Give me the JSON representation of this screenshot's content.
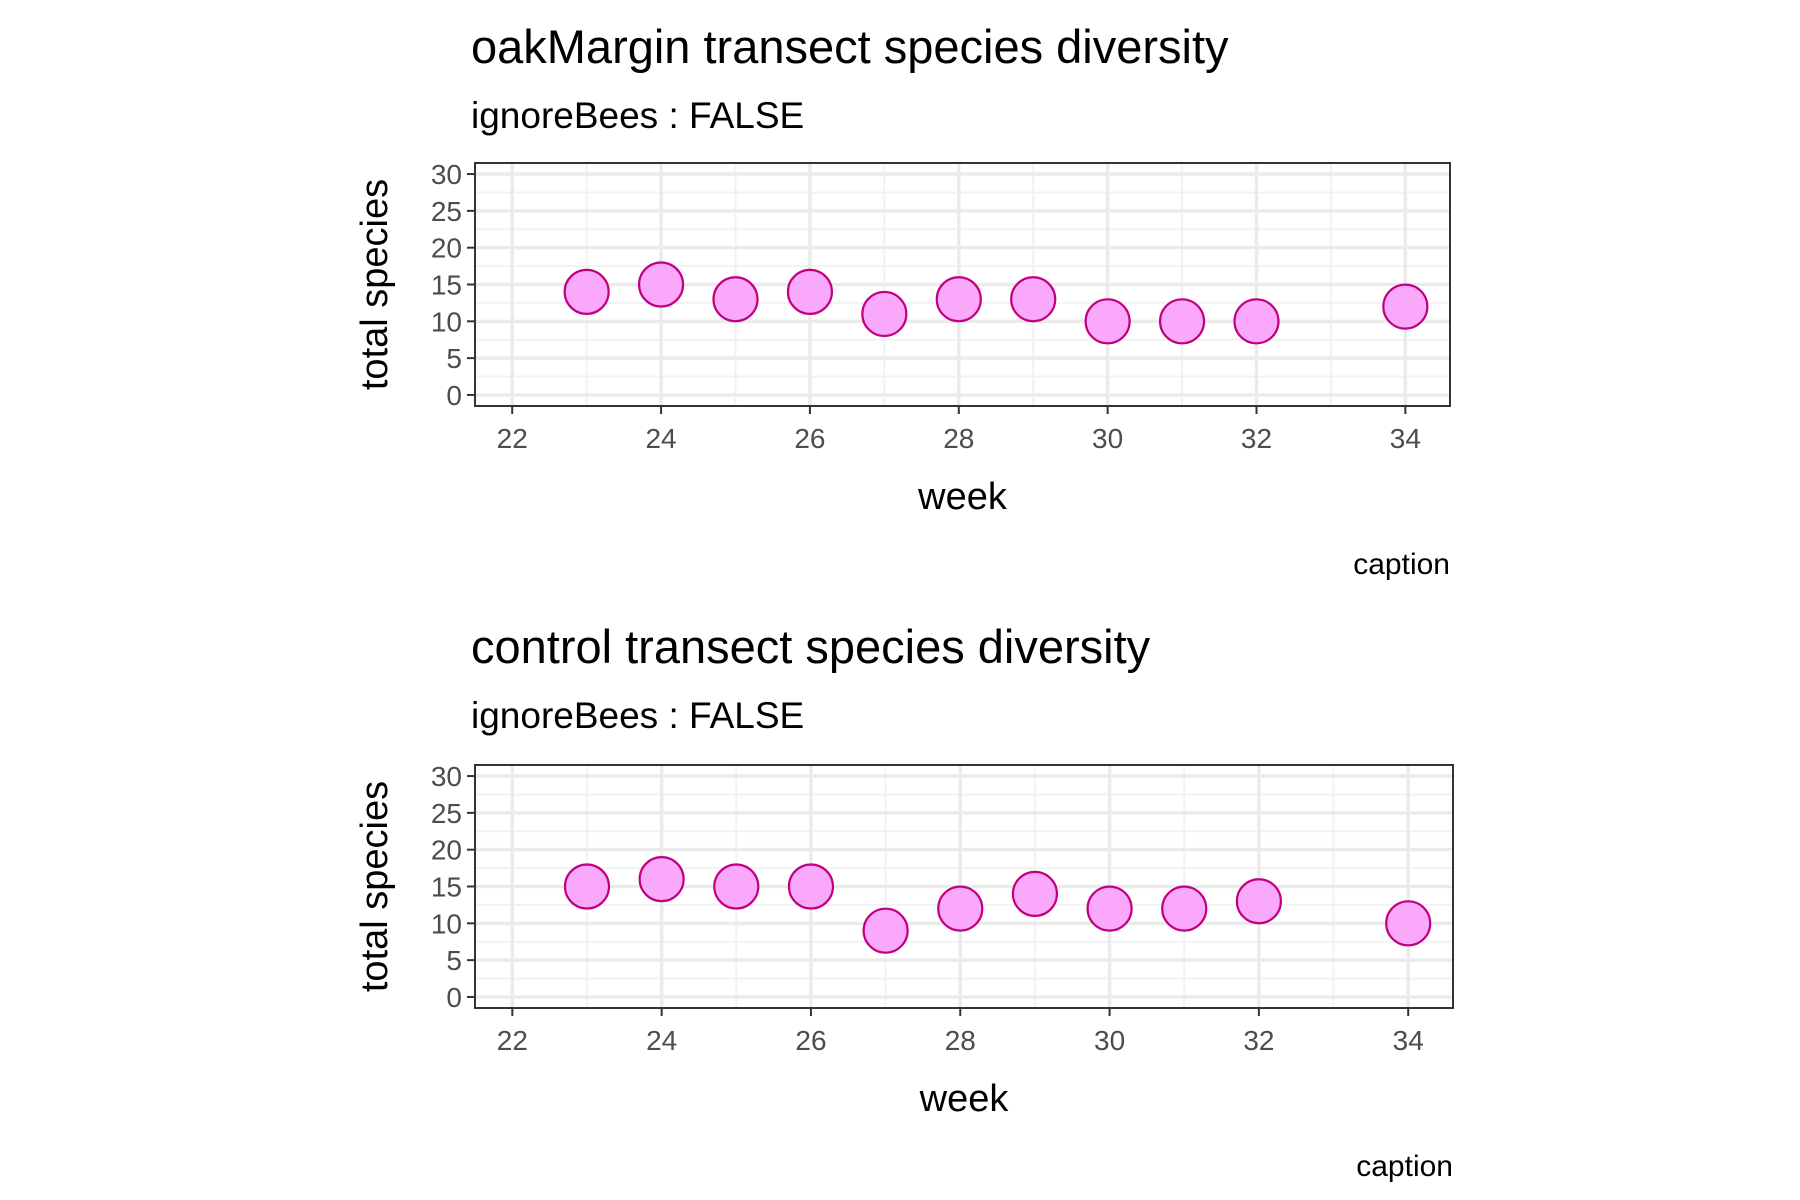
{
  "chart_data": [
    {
      "type": "scatter",
      "title": "oakMargin transect species diversity",
      "subtitle": "ignoreBees : FALSE",
      "xlabel": "week",
      "ylabel": "total species",
      "caption": "caption",
      "xlim": [
        21.5,
        34.6
      ],
      "ylim": [
        -1.5,
        31.5
      ],
      "x_ticks": [
        22,
        24,
        26,
        28,
        30,
        32,
        34
      ],
      "y_ticks": [
        0,
        5,
        10,
        15,
        20,
        25,
        30
      ],
      "grid": true,
      "series": [
        {
          "x": [
            23,
            24,
            25,
            26,
            27,
            28,
            29,
            30,
            31,
            32,
            34
          ],
          "y": [
            14,
            15,
            13,
            14,
            11,
            13,
            13,
            10,
            10,
            10,
            12
          ]
        }
      ]
    },
    {
      "type": "scatter",
      "title": "control transect species diversity",
      "subtitle": "ignoreBees : FALSE",
      "xlabel": "week",
      "ylabel": "total species",
      "caption": "caption",
      "xlim": [
        21.5,
        34.6
      ],
      "ylim": [
        -1.5,
        31.5
      ],
      "x_ticks": [
        22,
        24,
        26,
        28,
        30,
        32,
        34
      ],
      "y_ticks": [
        0,
        5,
        10,
        15,
        20,
        25,
        30
      ],
      "grid": true,
      "series": [
        {
          "x": [
            23,
            24,
            25,
            26,
            27,
            28,
            29,
            30,
            31,
            32,
            34
          ],
          "y": [
            15,
            16,
            15,
            15,
            9,
            12,
            14,
            12,
            12,
            13,
            10
          ]
        }
      ]
    }
  ],
  "colors": {
    "point_fill": "#FAA8FA",
    "point_stroke": "#C2007F",
    "grid_major": "#EBEBEB",
    "grid_minor": "#F2F2F2",
    "panel_border": "#333333",
    "tick_text": "#4D4D4D"
  }
}
